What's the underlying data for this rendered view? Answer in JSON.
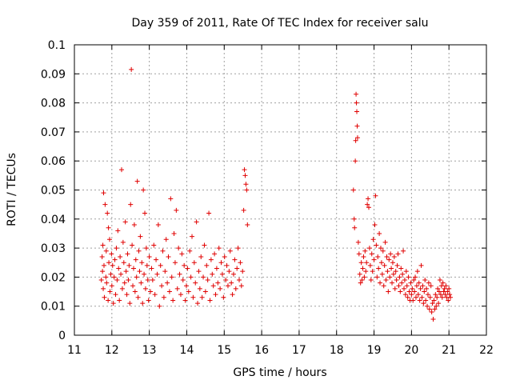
{
  "chart_data": {
    "type": "scatter",
    "title": "Day 359 of 2011, Rate Of TEC Index for receiver salu",
    "xlabel": "GPS time / hours",
    "ylabel": "ROTI / TECUs",
    "xlim": [
      11,
      22
    ],
    "ylim": [
      0,
      0.1
    ],
    "x_ticks": [
      "11",
      "12",
      "13",
      "14",
      "15",
      "16",
      "17",
      "18",
      "19",
      "20",
      "21",
      "22"
    ],
    "y_ticks": [
      "0",
      "0.01",
      "0.02",
      "0.03",
      "0.04",
      "0.05",
      "0.06",
      "0.07",
      "0.08",
      "0.09",
      "0.1"
    ],
    "grid": true,
    "marker": "+",
    "color": "#e00000",
    "series": [
      {
        "name": "ROTI",
        "points": [
          [
            11.72,
            0.019
          ],
          [
            11.74,
            0.027
          ],
          [
            11.75,
            0.022
          ],
          [
            11.76,
            0.031
          ],
          [
            11.77,
            0.016
          ],
          [
            11.78,
            0.049
          ],
          [
            11.79,
            0.024
          ],
          [
            11.8,
            0.013
          ],
          [
            11.82,
            0.045
          ],
          [
            11.84,
            0.02
          ],
          [
            11.85,
            0.029
          ],
          [
            11.86,
            0.018
          ],
          [
            11.88,
            0.042
          ],
          [
            11.9,
            0.012
          ],
          [
            11.91,
            0.037
          ],
          [
            11.92,
            0.025
          ],
          [
            11.94,
            0.033
          ],
          [
            11.95,
            0.015
          ],
          [
            11.97,
            0.021
          ],
          [
            11.99,
            0.028
          ],
          [
            12.0,
            0.017
          ],
          [
            12.02,
            0.024
          ],
          [
            12.04,
            0.011
          ],
          [
            12.06,
            0.02
          ],
          [
            12.08,
            0.026
          ],
          [
            12.1,
            0.014
          ],
          [
            12.12,
            0.03
          ],
          [
            12.14,
            0.019
          ],
          [
            12.16,
            0.036
          ],
          [
            12.18,
            0.023
          ],
          [
            12.2,
            0.012
          ],
          [
            12.22,
            0.027
          ],
          [
            12.24,
            0.021
          ],
          [
            12.26,
            0.057
          ],
          [
            12.28,
            0.016
          ],
          [
            12.3,
            0.032
          ],
          [
            12.32,
            0.025
          ],
          [
            12.34,
            0.018
          ],
          [
            12.36,
            0.039
          ],
          [
            12.38,
            0.022
          ],
          [
            12.4,
            0.014
          ],
          [
            12.42,
            0.028
          ],
          [
            12.44,
            0.019
          ],
          [
            12.46,
            0.024
          ],
          [
            12.48,
            0.011
          ],
          [
            12.5,
            0.045
          ],
          [
            12.52,
            0.0915
          ],
          [
            12.54,
            0.031
          ],
          [
            12.56,
            0.017
          ],
          [
            12.58,
            0.023
          ],
          [
            12.6,
            0.038
          ],
          [
            12.62,
            0.015
          ],
          [
            12.64,
            0.026
          ],
          [
            12.66,
            0.02
          ],
          [
            12.68,
            0.053
          ],
          [
            12.7,
            0.013
          ],
          [
            12.72,
            0.029
          ],
          [
            12.74,
            0.022
          ],
          [
            12.76,
            0.034
          ],
          [
            12.78,
            0.018
          ],
          [
            12.8,
            0.025
          ],
          [
            12.82,
            0.011
          ],
          [
            12.84,
            0.05
          ],
          [
            12.86,
            0.021
          ],
          [
            12.88,
            0.042
          ],
          [
            12.9,
            0.016
          ],
          [
            12.92,
            0.03
          ],
          [
            12.94,
            0.024
          ],
          [
            12.96,
            0.019
          ],
          [
            12.98,
            0.012
          ],
          [
            13.0,
            0.027
          ],
          [
            13.03,
            0.015
          ],
          [
            13.06,
            0.023
          ],
          [
            13.09,
            0.019
          ],
          [
            13.12,
            0.031
          ],
          [
            13.15,
            0.014
          ],
          [
            13.18,
            0.026
          ],
          [
            13.21,
            0.021
          ],
          [
            13.24,
            0.038
          ],
          [
            13.27,
            0.01
          ],
          [
            13.3,
            0.024
          ],
          [
            13.33,
            0.017
          ],
          [
            13.36,
            0.029
          ],
          [
            13.39,
            0.013
          ],
          [
            13.42,
            0.022
          ],
          [
            13.45,
            0.033
          ],
          [
            13.48,
            0.018
          ],
          [
            13.51,
            0.027
          ],
          [
            13.54,
            0.015
          ],
          [
            13.57,
            0.047
          ],
          [
            13.6,
            0.02
          ],
          [
            13.63,
            0.012
          ],
          [
            13.66,
            0.035
          ],
          [
            13.69,
            0.025
          ],
          [
            13.72,
            0.043
          ],
          [
            13.75,
            0.016
          ],
          [
            13.78,
            0.03
          ],
          [
            13.81,
            0.021
          ],
          [
            13.84,
            0.014
          ],
          [
            13.87,
            0.028
          ],
          [
            13.9,
            0.019
          ],
          [
            13.93,
            0.024
          ],
          [
            13.96,
            0.012
          ],
          [
            13.99,
            0.017
          ],
          [
            14.02,
            0.023
          ],
          [
            14.05,
            0.015
          ],
          [
            14.08,
            0.029
          ],
          [
            14.11,
            0.02
          ],
          [
            14.14,
            0.034
          ],
          [
            14.17,
            0.013
          ],
          [
            14.2,
            0.025
          ],
          [
            14.23,
            0.018
          ],
          [
            14.26,
            0.039
          ],
          [
            14.29,
            0.011
          ],
          [
            14.32,
            0.022
          ],
          [
            14.35,
            0.016
          ],
          [
            14.38,
            0.027
          ],
          [
            14.41,
            0.013
          ],
          [
            14.44,
            0.02
          ],
          [
            14.47,
            0.031
          ],
          [
            14.5,
            0.015
          ],
          [
            14.53,
            0.024
          ],
          [
            14.56,
            0.019
          ],
          [
            14.59,
            0.042
          ],
          [
            14.62,
            0.012
          ],
          [
            14.65,
            0.026
          ],
          [
            14.68,
            0.021
          ],
          [
            14.71,
            0.017
          ],
          [
            14.74,
            0.028
          ],
          [
            14.77,
            0.014
          ],
          [
            14.8,
            0.023
          ],
          [
            14.83,
            0.018
          ],
          [
            14.86,
            0.03
          ],
          [
            14.89,
            0.016
          ],
          [
            14.92,
            0.025
          ],
          [
            14.95,
            0.021
          ],
          [
            14.98,
            0.013
          ],
          [
            15.01,
            0.027
          ],
          [
            15.04,
            0.019
          ],
          [
            15.07,
            0.024
          ],
          [
            15.1,
            0.017
          ],
          [
            15.13,
            0.022
          ],
          [
            15.16,
            0.029
          ],
          [
            15.19,
            0.018
          ],
          [
            15.22,
            0.014
          ],
          [
            15.25,
            0.021
          ],
          [
            15.28,
            0.026
          ],
          [
            15.31,
            0.016
          ],
          [
            15.34,
            0.023
          ],
          [
            15.37,
            0.03
          ],
          [
            15.4,
            0.019
          ],
          [
            15.43,
            0.025
          ],
          [
            15.46,
            0.017
          ],
          [
            15.49,
            0.022
          ],
          [
            15.52,
            0.043
          ],
          [
            15.54,
            0.057
          ],
          [
            15.56,
            0.055
          ],
          [
            15.58,
            0.052
          ],
          [
            15.6,
            0.05
          ],
          [
            15.62,
            0.038
          ],
          [
            18.45,
            0.05
          ],
          [
            18.47,
            0.04
          ],
          [
            18.48,
            0.037
          ],
          [
            18.5,
            0.06
          ],
          [
            18.51,
            0.067
          ],
          [
            18.52,
            0.083
          ],
          [
            18.53,
            0.08
          ],
          [
            18.54,
            0.077
          ],
          [
            18.55,
            0.072
          ],
          [
            18.56,
            0.068
          ],
          [
            18.58,
            0.032
          ],
          [
            18.6,
            0.028
          ],
          [
            18.62,
            0.021
          ],
          [
            18.64,
            0.018
          ],
          [
            18.66,
            0.025
          ],
          [
            18.68,
            0.019
          ],
          [
            18.7,
            0.023
          ],
          [
            18.72,
            0.027
          ],
          [
            18.74,
            0.02
          ],
          [
            18.76,
            0.029
          ],
          [
            18.78,
            0.022
          ],
          [
            18.8,
            0.025
          ],
          [
            18.82,
            0.045
          ],
          [
            18.84,
            0.047
          ],
          [
            18.86,
            0.044
          ],
          [
            18.88,
            0.03
          ],
          [
            18.9,
            0.024
          ],
          [
            18.92,
            0.019
          ],
          [
            18.94,
            0.028
          ],
          [
            18.96,
            0.022
          ],
          [
            18.98,
            0.033
          ],
          [
            19.0,
            0.026
          ],
          [
            19.02,
            0.038
          ],
          [
            19.04,
            0.048
          ],
          [
            19.06,
            0.031
          ],
          [
            19.08,
            0.02
          ],
          [
            19.1,
            0.027
          ],
          [
            19.12,
            0.023
          ],
          [
            19.14,
            0.035
          ],
          [
            19.16,
            0.018
          ],
          [
            19.18,
            0.03
          ],
          [
            19.2,
            0.025
          ],
          [
            19.22,
            0.021
          ],
          [
            19.24,
            0.029
          ],
          [
            19.26,
            0.017
          ],
          [
            19.28,
            0.024
          ],
          [
            19.3,
            0.032
          ],
          [
            19.32,
            0.019
          ],
          [
            19.34,
            0.027
          ],
          [
            19.36,
            0.022
          ],
          [
            19.38,
            0.015
          ],
          [
            19.4,
            0.026
          ],
          [
            19.42,
            0.02
          ],
          [
            19.44,
            0.028
          ],
          [
            19.46,
            0.023
          ],
          [
            19.48,
            0.018
          ],
          [
            19.5,
            0.025
          ],
          [
            19.52,
            0.021
          ],
          [
            19.54,
            0.027
          ],
          [
            19.56,
            0.016
          ],
          [
            19.58,
            0.022
          ],
          [
            19.6,
            0.019
          ],
          [
            19.62,
            0.024
          ],
          [
            19.64,
            0.028
          ],
          [
            19.66,
            0.017
          ],
          [
            19.68,
            0.02
          ],
          [
            19.7,
            0.015
          ],
          [
            19.72,
            0.023
          ],
          [
            19.74,
            0.018
          ],
          [
            19.76,
            0.021
          ],
          [
            19.78,
            0.029
          ],
          [
            19.8,
            0.016
          ],
          [
            19.82,
            0.019
          ],
          [
            19.84,
            0.014
          ],
          [
            19.86,
            0.022
          ],
          [
            19.88,
            0.017
          ],
          [
            19.9,
            0.013
          ],
          [
            19.92,
            0.02
          ],
          [
            19.94,
            0.015
          ],
          [
            19.96,
            0.012
          ],
          [
            19.98,
            0.018
          ],
          [
            20.0,
            0.014
          ],
          [
            20.02,
            0.016
          ],
          [
            20.04,
            0.012
          ],
          [
            20.06,
            0.019
          ],
          [
            20.08,
            0.015
          ],
          [
            20.1,
            0.02
          ],
          [
            20.12,
            0.013
          ],
          [
            20.14,
            0.017
          ],
          [
            20.16,
            0.022
          ],
          [
            20.18,
            0.014
          ],
          [
            20.2,
            0.018
          ],
          [
            20.22,
            0.012
          ],
          [
            20.24,
            0.016
          ],
          [
            20.26,
            0.024
          ],
          [
            20.28,
            0.013
          ],
          [
            20.3,
            0.017
          ],
          [
            20.32,
            0.011
          ],
          [
            20.34,
            0.015
          ],
          [
            20.36,
            0.019
          ],
          [
            20.38,
            0.012
          ],
          [
            20.4,
            0.016
          ],
          [
            20.42,
            0.01
          ],
          [
            20.44,
            0.014
          ],
          [
            20.46,
            0.018
          ],
          [
            20.48,
            0.009
          ],
          [
            20.5,
            0.013
          ],
          [
            20.52,
            0.017
          ],
          [
            20.54,
            0.008
          ],
          [
            20.56,
            0.011
          ],
          [
            20.58,
            0.0055
          ],
          [
            20.6,
            0.012
          ],
          [
            20.62,
            0.009
          ],
          [
            20.64,
            0.014
          ],
          [
            20.66,
            0.01
          ],
          [
            20.68,
            0.013
          ],
          [
            20.7,
            0.016
          ],
          [
            20.72,
            0.011
          ],
          [
            20.74,
            0.015
          ],
          [
            20.76,
            0.019
          ],
          [
            20.78,
            0.014
          ],
          [
            20.8,
            0.017
          ],
          [
            20.82,
            0.013
          ],
          [
            20.84,
            0.018
          ],
          [
            20.86,
            0.015
          ],
          [
            20.88,
            0.016
          ],
          [
            20.9,
            0.014
          ],
          [
            20.92,
            0.017
          ],
          [
            20.94,
            0.013
          ],
          [
            20.96,
            0.015
          ],
          [
            20.98,
            0.012
          ],
          [
            21.0,
            0.016
          ],
          [
            21.02,
            0.014
          ],
          [
            21.04,
            0.013
          ]
        ]
      }
    ]
  }
}
